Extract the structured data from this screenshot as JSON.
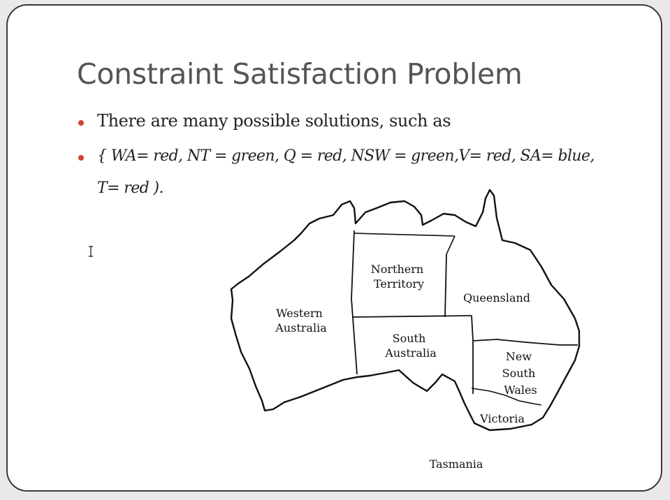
{
  "slide": {
    "title": "Constraint Satisfaction Problem",
    "bullets": [
      {
        "text": "There are many possible solutions, such as"
      },
      {
        "line1": "{ WA= red, NT = green, Q = red, NSW = green,V= red, SA= blue,",
        "line2": "T= red )."
      }
    ],
    "accent_color": "#d2452f"
  },
  "map": {
    "regions": {
      "western_australia": [
        "Western",
        "Australia"
      ],
      "northern_territory": [
        "Northern",
        "Territory"
      ],
      "queensland": [
        "Queensland"
      ],
      "south_australia": [
        "South",
        "Australia"
      ],
      "new_south_wales": [
        "New",
        "South",
        "Wales"
      ],
      "victoria": [
        "Victoria"
      ],
      "tasmania": [
        "Tasmania"
      ]
    }
  },
  "cursor": {
    "icon": "text-cursor-icon"
  }
}
